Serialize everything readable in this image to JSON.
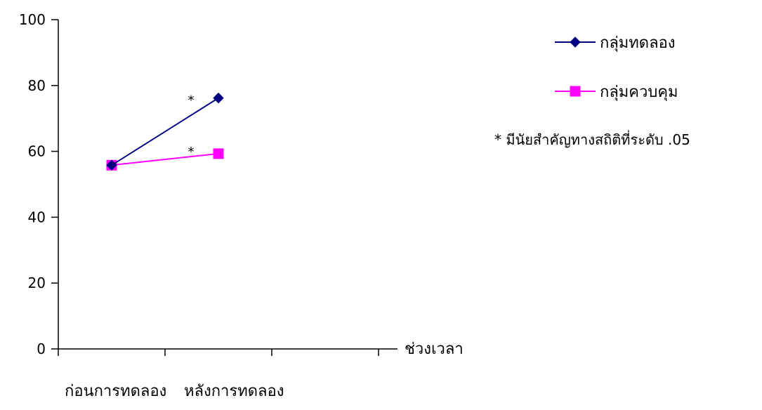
{
  "chart_data": {
    "type": "line",
    "categories": [
      "ก่อนการทดลอง",
      "หลังการทดลอง"
    ],
    "x_axis_ticks": 3,
    "series": [
      {
        "name": "กลุ่มทดลอง",
        "values": [
          55.8,
          76.2
        ],
        "color": "#000080",
        "marker": "diamond"
      },
      {
        "name": "กลุ่มควบคุม",
        "values": [
          55.8,
          59.3
        ],
        "color": "#ff00ff",
        "marker": "square"
      }
    ],
    "xlabel": "ช่วงเวลา",
    "ylabel": "",
    "ylim": [
      0,
      100
    ],
    "yticks": [
      0,
      20,
      40,
      60,
      80,
      100
    ],
    "grid": false,
    "legend_position": "right",
    "annotations": [
      {
        "text": "*",
        "series": "กลุ่มทดลอง"
      },
      {
        "text": "*",
        "series": "กลุ่มควบคุม"
      }
    ],
    "note": "* มีนัยสำคัญทางสถิติที่ระดับ .05"
  }
}
